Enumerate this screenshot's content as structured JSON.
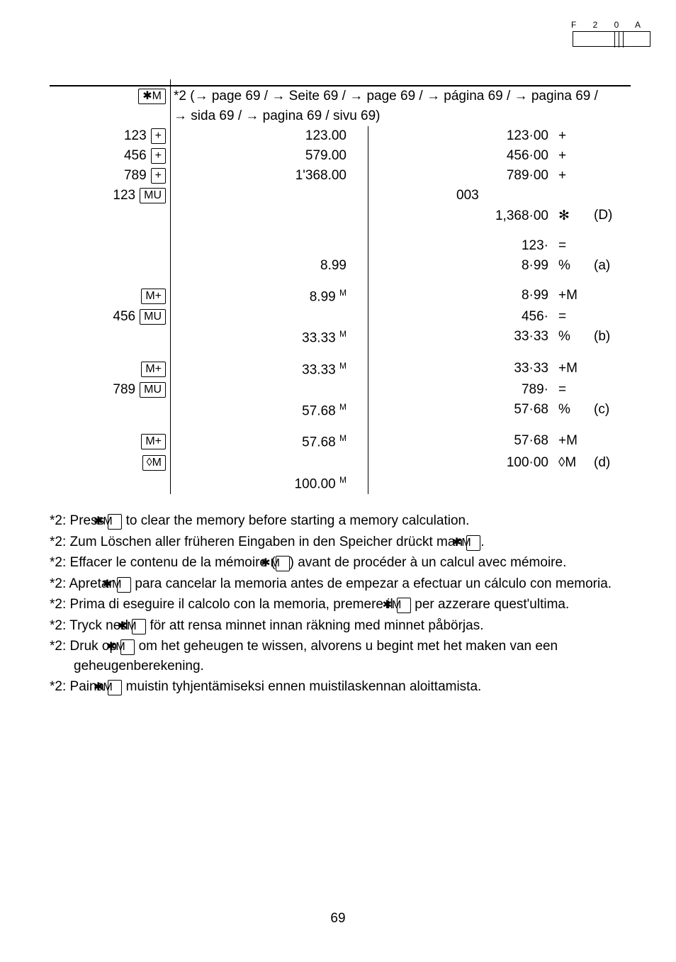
{
  "header": {
    "code": "F 2 0 A"
  },
  "intro": {
    "prefix_key": "✱M",
    "line1": "*2 (→ page 69 / → Seite 69 / → page 69 / → página 69 / → pagina 69 /",
    "line2": "→ sida 69 / → pagina 69 / sivu 69)"
  },
  "rows": [
    {
      "c1_num": "123",
      "c1_key": "+",
      "c2": "123.00",
      "c3_num": "123·00",
      "c3_sym": "+",
      "c4": ""
    },
    {
      "c1_num": "456",
      "c1_key": "+",
      "c2": "579.00",
      "c3_num": "456·00",
      "c3_sym": "+",
      "c4": ""
    },
    {
      "c1_num": "789",
      "c1_key": "+",
      "c2": "1'368.00",
      "c3_num": "789·00",
      "c3_sym": "+",
      "c4": ""
    },
    {
      "c1_num": "123",
      "c1_key": "MU",
      "c2": "",
      "c3_num": "003",
      "c3_sym": "",
      "c4": "",
      "c3_left": true
    },
    {
      "c1_num": "",
      "c1_key": "",
      "c2": "",
      "c3_num": "1,368·00",
      "c3_sym": "✻",
      "c4": "(D)"
    },
    {
      "gap": true
    },
    {
      "c1_num": "",
      "c1_key": "",
      "c2": "",
      "c3_num": "123·",
      "c3_sym": "=",
      "c4": ""
    },
    {
      "c1_num": "",
      "c1_key": "",
      "c2": "8.99",
      "c3_num": "8·99",
      "c3_sym": "%",
      "c4": "(a)"
    },
    {
      "gap": true
    },
    {
      "c1_num": "",
      "c1_key": "M+",
      "c2": "8.99 ",
      "c2_sup": "M",
      "c3_num": "8·99",
      "c3_sym": "+M",
      "c4": ""
    },
    {
      "c1_num": "456",
      "c1_key": "MU",
      "c2": "",
      "c3_num": "456·",
      "c3_sym": "=",
      "c4": ""
    },
    {
      "c1_num": "",
      "c1_key": "",
      "c2": "33.33 ",
      "c2_sup": "M",
      "c3_num": "33·33",
      "c3_sym": "%",
      "c4": "(b)"
    },
    {
      "gap": true
    },
    {
      "c1_num": "",
      "c1_key": "M+",
      "c2": "33.33 ",
      "c2_sup": "M",
      "c3_num": "33·33",
      "c3_sym": "+M",
      "c4": ""
    },
    {
      "c1_num": "789",
      "c1_key": "MU",
      "c2": "",
      "c3_num": "789·",
      "c3_sym": "=",
      "c4": ""
    },
    {
      "c1_num": "",
      "c1_key": "",
      "c2": "57.68 ",
      "c2_sup": "M",
      "c3_num": "57·68",
      "c3_sym": "%",
      "c4": "(c)"
    },
    {
      "gap": true
    },
    {
      "c1_num": "",
      "c1_key": "M+",
      "c2": "57.68 ",
      "c2_sup": "M",
      "c3_num": "57·68",
      "c3_sym": "+M",
      "c4": ""
    },
    {
      "c1_num": "",
      "c1_key": "◊M",
      "c2": "",
      "c3_num": "100·00",
      "c3_sym": "◊M",
      "c4": "(d)"
    },
    {
      "c1_num": "",
      "c1_key": "",
      "c2": "100.00 ",
      "c2_sup": "M",
      "c3_num": "",
      "c3_sym": "",
      "c4": ""
    }
  ],
  "notes": [
    {
      "pre": "*2: Press ",
      "key": "✱M",
      "post": " to clear the memory before starting a memory calculation."
    },
    {
      "pre": "*2: Zum Löschen aller früheren Eingaben in den Speicher drückt man ",
      "key": "✱M",
      "post": "."
    },
    {
      "pre": "*2: Effacer le contenu de la mémoire (",
      "key": "✱M",
      "post": ") avant de procéder à un calcul avec mémoire."
    },
    {
      "pre": "*2: Apretar ",
      "key": "✱M",
      "post": " para cancelar la memoria antes de empezar a efectuar un cálculo con memoria."
    },
    {
      "pre": "*2: Prima di eseguire il calcolo con la memoria, premere il ",
      "key": "✱M",
      "post": " per azzerare quest'ultima."
    },
    {
      "pre": "*2: Tryck ned ",
      "key": "✱M",
      "post": " för att rensa minnet innan räkning med minnet påbörjas."
    },
    {
      "pre": "*2: Druk op ",
      "key": "✱M",
      "post": " om het geheugen te wissen, alvorens u begint met het maken van een geheugenberekening."
    },
    {
      "pre": "*2: Paina ",
      "key": "✱M",
      "post": " muistin tyhjentämiseksi ennen muistilaskennan aloittamista."
    }
  ],
  "page_number": "69"
}
